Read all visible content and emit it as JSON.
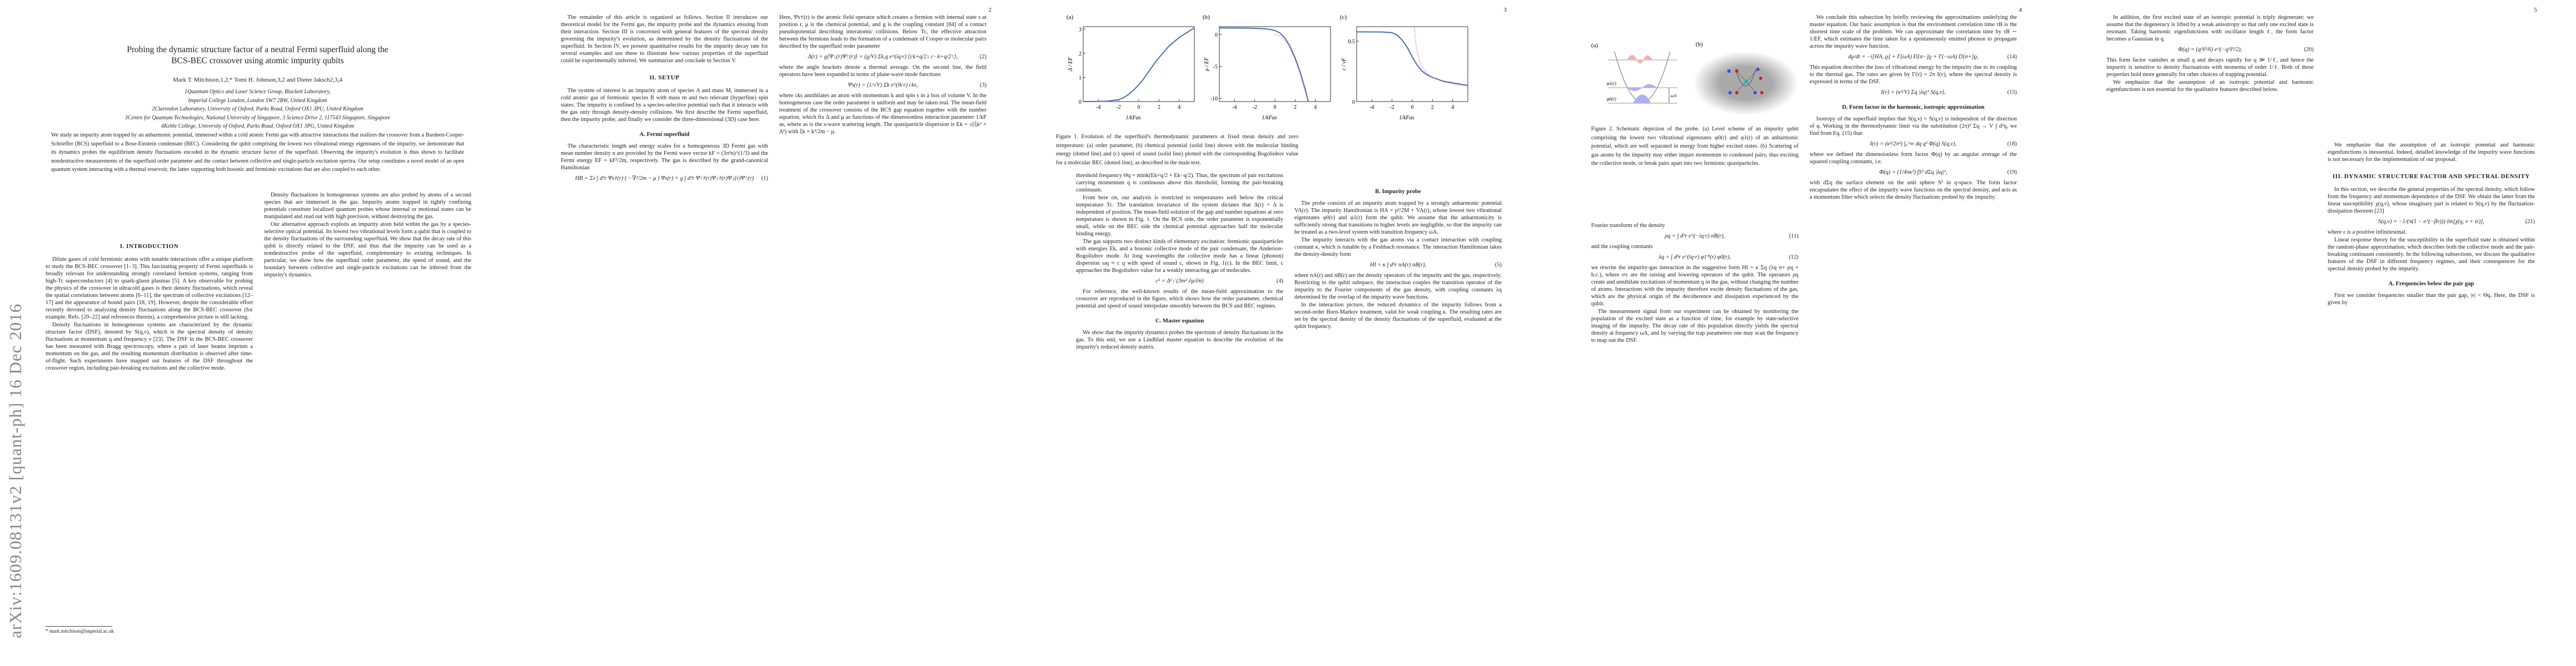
{
  "arxiv_stamp": "arXiv:1609.08131v2  [quant-ph]  16 Dec 2016",
  "page_numbers": [
    "2",
    "3",
    "4",
    "5"
  ],
  "title_line1": "Probing the dynamic structure factor of a neutral Fermi superfluid along the",
  "title_line2": "BCS-BEC crossover using atomic impurity qubits",
  "authors": "Mark T. Mitchison,1,2,* Tomi H. Johnson,3,2 and Dieter Jaksch2,3,4",
  "affiliations": [
    "1Quantum Optics and Laser Science Group, Blackett Laboratory,",
    "Imperial College London, London SW7 2BW, United Kingdom",
    "2Clarendon Laboratory, University of Oxford, Parks Road, Oxford OX1 3PU, United Kingdom",
    "3Centre for Quantum Technologies, National University of Singapore, 3 Science Drive 2, 117543 Singapore, Singapore",
    "4Keble College, University of Oxford, Parks Road, Oxford OX1 3PG, United Kingdom"
  ],
  "abstract": "We study an impurity atom trapped by an anharmonic potential, immersed within a cold atomic Fermi gas with attractive interactions that realizes the crossover from a Bardeen-Cooper-Schrieffer (BCS) superfluid to a Bose-Einstein condensate (BEC). Considering the qubit comprising the lowest two vibrational energy eigenstates of the impurity, we demonstrate that its dynamics probes the equilibrium density fluctuations encoded in the dynamic structure factor of the superfluid. Observing the impurity's evolution is thus shown to facilitate nondestructive measurements of the superfluid order parameter and the contact between collective and single-particle excitation spectra. Our setup constitutes a novel model of an open quantum system interacting with a thermal reservoir, the latter supporting both bosonic and fermionic excitations that are also coupled to each other.",
  "footnote": "* mark.mitchison@imperial.ac.uk",
  "p1": {
    "h_intro": "I.   INTRODUCTION",
    "intro1": "Dilute gases of cold fermionic atoms with tunable interactions offer a unique platform to study the BCS-BEC crossover [1–3]. This fascinating property of Fermi superfluids is broadly relevant for understanding strongly correlated fermion systems, ranging from high-Tc superconductors [4] to quark-gluon plasmas [5]. A key observable for probing the physics of the crossover in ultracold gases is their density fluctuations, which reveal the spatial correlations between atoms [6–11], the spectrum of collective excitations [12–17] and the appearance of bound pairs [18, 19]. However, despite the considerable effort recently devoted to analyzing density fluctuations along the BCS-BEC crossover (for example, Refs. [20–22] and references therein), a comprehensive picture is still lacking.",
    "intro2": "Density fluctuations in homogeneous systems are characterized by the dynamic structure factor (DSF), denoted by S(q,ν), which is the spectral density of density fluctuations at momentum q and frequency ν [23]. The DSF in the BCS-BEC crossover has been measured with Bragg spectroscopy, where a pair of laser beams imprints a momentum on the gas, and the resulting momentum distribution is observed after time-of-flight. Such experiments have mapped out features of the DSF throughout the crossover region, including pair-breaking excitations and the collective mode.",
    "intro3": "Density fluctuations in homogeneous systems are also probed by atoms of a second species that are immersed in the gas. Impurity atoms trapped in tightly confining potentials constitute localized quantum probes whose internal or motional states can be manipulated and read out with high precision, without destroying the gas.",
    "intro4": "Our alternative approach exploits an impurity atom held within the gas by a species-selective optical potential. Its lowest two vibrational levels form a qubit that is coupled to the density fluctuations of the surrounding superfluid. We show that the decay rate of this qubit is directly related to the DSF, and thus that the impurity can be used as a nondestructive probe of the superfluid, complementary to existing techniques. In particular, we show how the superfluid order parameter, the speed of sound, and the boundary between collective and single-particle excitations can be inferred from the impurity's dynamics."
  },
  "p2": {
    "c1a": "The remainder of this article is organized as follows. Section II introduces our theoretical model for the Fermi gas, the impurity probe and the dynamics ensuing from their interaction. Section III is concerned with general features of the spectral density governing the impurity's evolution, as determined by the density fluctuations of the superfluid. In Section IV, we present quantitative results for the impurity decay rate for several examples and use these to illustrate how various properties of the superfluid could be experimentally inferred. We summarize and conclude in Section V.",
    "h_setup": "II.   SETUP",
    "c1b": "The system of interest is an impurity atom of species A and mass M, immersed in a cold atomic gas of fermionic species B with mass m and two relevant (hyperfine) spin states. The impurity is confined by a species-selective potential such that it interacts with the gas only through density-density collisions. We first describe the Fermi superfluid, then the impurity probe, and finally we consider the three-dimensional (3D) case here.",
    "h_fermi": "A.   Fermi superfluid",
    "c1c": "The characteristic length and energy scales for a homogeneous 3D Fermi gas with mean number density n are provided by the Fermi wave vector kF = (3π²n)^(1/3) and the Fermi energy EF = kF²/2m, respectively. The gas is described by the grand-canonical Hamiltonian",
    "eq1": "HB = Σs ∫ d³r Ψs†(r) ( −∇²/2m − μ ) Ψs(r) + g ∫ d³r Ψ↑†(r)Ψ↓†(r)Ψ↓(r)Ψ↑(r)",
    "eq1n": "(1)",
    "c2a": "Here, Ψs†(r) is the atomic field operator which creates a fermion with internal state s at position r, μ is the chemical potential, and g is the coupling constant [84] of a contact pseudopotential describing interatomic collisions. Below Tc, the effective attraction between the fermions leads to the formation of a condensate of Cooper or molecular pairs described by the superfluid order parameter",
    "eq2": "Δ(r) = g⟨Ψ↓(r)Ψ↑(r)⟩ = (g/V) Σk,q e^(iq·r) ⟨ck+q/2↓ c−k+q/2↑⟩,",
    "eq2n": "(2)",
    "c2b": "where the angle brackets denote a thermal average. On the second line, the field operators have been expanded in terms of plane-wave mode functions",
    "eq3": "Ψs(r) = (1/√V) Σk e^(ik·r) cks,",
    "eq3n": "(3)",
    "c2c": "where cks annihilates an atom with momentum k and spin s in a box of volume V. In the homogeneous case the order parameter is uniform and may be taken real. The mean-field treatment of the crossover consists of the BCS gap equation together with the number equation, which fix Δ and μ as functions of the dimensionless interaction parameter 1/kF as, where as is the s-wave scattering length. The quasiparticle dispersion is Ek = √(ξk² + Δ²) with ξk = k²/2m − μ."
  },
  "fig1": {
    "panel_labels": [
      "(a)",
      "(b)",
      "(c)"
    ],
    "caption": "Figure 1. Evolution of the superfluid's thermodynamic parameters at fixed mean density and zero temperature: (a) order parameter, (b) chemical potential (solid line) shown with the molecular binding energy (dotted line) and (c) speed of sound (solid line) plotted with the corresponding Bogoliubov value for a molecular BEC (dotted line), as described in the main text."
  },
  "chart_data": [
    {
      "type": "line",
      "panel": "(a)",
      "xlabel": "1/kFas",
      "ylabel": "Δ / EF",
      "xlim": [
        -5.5,
        5.5
      ],
      "ylim": [
        0,
        3.1
      ],
      "xticks": [
        "-4",
        "-2",
        "0",
        "2",
        "4"
      ],
      "yticks": [
        "0",
        "1",
        "2",
        "3"
      ],
      "series": [
        {
          "style": "solid",
          "color": "#4a6fa5",
          "x": [
            -5.5,
            -4,
            -3,
            -2,
            -1.5,
            -1,
            -0.5,
            0,
            0.5,
            1,
            1.5,
            2,
            3,
            4,
            5,
            5.5
          ],
          "y": [
            0,
            0.005,
            0.02,
            0.08,
            0.16,
            0.3,
            0.48,
            0.69,
            0.95,
            1.25,
            1.55,
            1.82,
            2.3,
            2.65,
            2.92,
            3.05
          ]
        }
      ]
    },
    {
      "type": "line",
      "panel": "(b)",
      "xlabel": "1/kFas",
      "ylabel": "μ / EF",
      "xlim": [
        -5.5,
        5.5
      ],
      "ylim": [
        -10.5,
        1.2
      ],
      "xticks": [
        "-4",
        "-2",
        "0",
        "2",
        "4"
      ],
      "yticks": [
        "0",
        "-5",
        "-10"
      ],
      "series": [
        {
          "style": "solid",
          "color": "#4a6fa5",
          "x": [
            -5.5,
            -3,
            -2,
            -1,
            -0.5,
            0,
            0.5,
            1,
            1.5,
            2,
            2.5,
            3,
            3.3
          ],
          "y": [
            0.99,
            0.97,
            0.94,
            0.86,
            0.77,
            0.59,
            0.2,
            -0.6,
            -1.9,
            -3.7,
            -5.9,
            -8.6,
            -10.5
          ]
        },
        {
          "style": "dotted",
          "color": "#d36fd8",
          "x": [
            0,
            0.5,
            1,
            1.5,
            2,
            2.5,
            3,
            3.25
          ],
          "y": [
            0,
            -0.25,
            -1,
            -2.25,
            -4,
            -6.25,
            -9,
            -10.5
          ]
        }
      ]
    },
    {
      "type": "line",
      "panel": "(c)",
      "xlabel": "1/kFas",
      "ylabel": "c / vF",
      "xlim": [
        -5.5,
        5.5
      ],
      "ylim": [
        0,
        0.62
      ],
      "xticks": [
        "-4",
        "-2",
        "0",
        "2",
        "4"
      ],
      "yticks": [
        "0",
        "0.5"
      ],
      "series": [
        {
          "style": "solid",
          "color": "#4a6fa5",
          "x": [
            -5.5,
            -3,
            -2,
            -1.5,
            -1,
            -0.5,
            0,
            0.5,
            1,
            1.5,
            2,
            3,
            4,
            5,
            5.5
          ],
          "y": [
            0.577,
            0.576,
            0.57,
            0.55,
            0.51,
            0.45,
            0.37,
            0.3,
            0.25,
            0.22,
            0.2,
            0.17,
            0.155,
            0.14,
            0.135
          ]
        },
        {
          "style": "dotted",
          "color": "#d36fd8",
          "x": [
            0.2,
            0.4,
            0.7,
            1,
            1.5,
            2,
            3,
            4,
            5,
            5.5
          ],
          "y": [
            0.62,
            0.45,
            0.34,
            0.28,
            0.23,
            0.2,
            0.165,
            0.145,
            0.135,
            0.13
          ]
        }
      ]
    }
  ],
  "p3": {
    "c1a": "threshold frequency Θq = mink(Ek+q/2 + Ek−q/2). Thus, the spectrum of pair excitations carrying momentum q is continuous above this threshold, forming the pair-breaking continuum.",
    "c1b": "From here on, our analysis is restricted to temperatures well below the critical temperature Tc. The translation invariance of the system dictates that Δ(r) = Δ is independent of position. The mean-field solution of the gap and number equations at zero temperature is shown in Fig. 1. On the BCS side, the order parameter is exponentially small, while on the BEC side the chemical potential approaches half the molecular binding energy.",
    "c1c": "The gas supports two distinct kinds of elementary excitation: fermionic quasiparticles with energies Ek, and a bosonic collective mode of the pair condensate, the Anderson-Bogoliubov mode. At long wavelengths the collective mode has a linear (phonon) dispersion ωq ≈ c q with speed of sound c, shown in Fig. 1(c). In the BEC limit, c approaches the Bogoliubov value for a weakly interacting gas of molecules.",
    "eq4": "c² = Δ² / (3m² ∂μ/∂n)",
    "eq4n": "(4)",
    "c1d": "For reference, the well-known results of the mean-field approximation to the crossover are reproduced in the figure, which shows how the order parameter, chemical potential and speed of sound interpolate smoothly between the BCS and BEC regimes.",
    "h_master": "C.   Master equation",
    "c1e": "We show that the impurity dynamics probes the spectrum of density fluctuations in the gas. To this end, we use a Lindblad master equation to describe the evolution of the impurity's reduced density matrix.",
    "h_probe": "B.   Impurity probe",
    "c2a": "The probe consists of an impurity atom trapped by a strongly anharmonic potential VA(r). The impurity Hamiltonian is HA = p²/2M + VA(r), whose lowest two vibrational eigenstates φ0(r) and φ1(r) form the qubit. We assume that the anharmonicity is sufficiently strong that transitions to higher levels are negligible, so that the impurity can be treated as a two-level system with transition frequency ωA.",
    "c2b": "The impurity interacts with the gas atoms via a contact interaction with coupling constant κ, which is tunable by a Feshbach resonance. The interaction Hamiltonian takes the density-density form",
    "eq5": "HI = κ ∫ d³r nA(r) nB(r),",
    "eq5n": "(5)",
    "c2c": "where nA(r) and nB(r) are the density operators of the impurity and the gas, respectively. Restricting to the qubit subspace, the interaction couples the transition operator of the impurity to the Fourier components of the gas density, with coupling constants λq determined by the overlap of the impurity wave functions.",
    "c2d": "In the interaction picture, the reduced dynamics of the impurity follows from a second-order Born-Markov treatment, valid for weak coupling κ. The resulting rates are set by the spectral density of the density fluctuations of the superfluid, evaluated at the qubit frequency."
  },
  "fig2": {
    "panel_labels": [
      "(a)",
      "(b)"
    ],
    "phi1": "φ1(r)",
    "phi0": "φ0(r)",
    "omega": "ωA",
    "caption": "Figure 2. Schematic depiction of the probe. (a) Level scheme of an impurity qubit comprising the lowest two vibrational eigenstates φ0(r) and φ1(r) of an anharmonic potential, which are well separated in energy from higher excited states. (b) Scattering of gas atoms by the impurity may either impart momentum to condensed pairs, thus exciting the collective mode, or break pairs apart into two fermionic quasiparticles."
  },
  "p4": {
    "c1a": "Fourier transform of the density",
    "eq6": "ρq = ∫ d³r e^(−iq·r) nB(r),",
    "eq6n": "(11)",
    "c1b": "and the coupling constants",
    "eq7": "λq = ∫ d³r e^(iq·r) φ1*(r) φ0(r),",
    "eq7n": "(12)",
    "c1c": "we rewrite the impurity-gas interaction in the suggestive form HI = κ Σq (λq σ+ ρq + h.c.), where σ± are the raising and lowering operators of the qubit. The operators ρq create and annihilate excitations of momentum q in the gas, without changing the number of atoms. Interactions with the impurity therefore excite density fluctuations of the gas, which are the physical origin of the decoherence and dissipation experienced by the qubit.",
    "c1d": "The measurement signal from our experiment can be obtained by monitoring the population of the excited state as a function of time, for example by state-selective imaging of the impurity. The decay rate of this population directly yields the spectral density at frequency ωA, and by varying the trap parameters one may scan the frequency to map out the DSF.",
    "c2a": "We conclude this subsection by briefly reviewing the approximations underlying the master equation. Our basic assumption is that the environment correlation time τB is the shortest time scale of the problem. We can approximate the correlation time by τB ∼ 1/EF, which estimates the time taken for a spontaneously emitted phonon to propagate across the impurity wave function.",
    "eq8": "dϱ/dt = −i[HA, ϱ] + Γ(ωA) D[σ−]ϱ + Γ(−ωA) D[σ+]ϱ,",
    "eq8n": "(14)",
    "c2b": "This equation describes the loss of vibrational energy by the impurity due to its coupling to the thermal gas. The rates are given by Γ(ν) = 2π I(ν), where the spectral density is expressed in terms of the DSF.",
    "eq9": "I(ν) = (κ²/V) Σq |λq|² S(q,ν),",
    "eq9n": "(15)",
    "h_form": "D.   Form factor in the harmonic, isotropic approximation",
    "c2c": "Isotropy of the superfluid implies that S(q,ν) = S(q,ν) is independent of the direction of q. Working in the thermodynamic limit via the substitution (2π)³ Σq → V ∫ d³q, we find from Eq. (15) that",
    "eq10": "I(ν) = (κ²/2π²) ∫₀^∞ dq q² Φ(q) S(q,ν),",
    "eq10n": "(18)",
    "c2d": "where we defined the dimensionless form factor Φ(q) by an angular average of the squared coupling constants, i.e.",
    "eq11": "Φ(q) = (1/4πκ²) ∫S² dΣq |λq|²,",
    "eq11n": "(19)",
    "c2e": "with dΣq the surface element on the unit sphere S² in q-space. The form factor encapsulates the effect of the impurity wave functions on the spectral density, and acts as a momentum filter which selects the density fluctuations probed by the impurity."
  },
  "p5": {
    "c1a": "In addition, the first excited state of an isotropic potential is triply degenerate; we assume that the degeneracy is lifted by a weak anisotropy so that only one excited state is resonant. Taking harmonic eigenfunctions with oscillator length ℓ, the form factor becomes a Gaussian in q.",
    "eq12": "Φ(q) = (q²ℓ²/6) e^(−q²ℓ²/2),",
    "eq12n": "(20)",
    "c1b": "This form factor vanishes at small q and decays rapidly for q ≫ 1/ℓ, and hence the impurity is sensitive to density fluctuations with momenta of order 1/ℓ. Both of these properties hold more generally for other choices of trapping potential.",
    "c1c": "We emphasize that the assumption of an isotropic potential and harmonic eigenfunctions is not essential for the qualitative features described below.",
    "c2a": "We emphasize that the assumption of an isotropic potential and harmonic eigenfunctions is inessential. Indeed, detailed knowledge of the impurity wave functions is not necessary for the implementation of our proposal.",
    "h_dsf": "III.   DYNAMIC STRUCTURE FACTOR AND SPECTRAL DENSITY",
    "c2b": "In this section, we describe the general properties of the spectral density, which follow from the frequency and momentum dependence of the DSF. We obtain the latter from the linear susceptibility χ(q,ν), whose imaginary part is related to S(q,ν) by the fluctuation-dissipation theorem [23]",
    "eq13": "S(q,ν) = −1/(π(1 − e^(−βν))) Im[χ(q, ν + iε)],",
    "eq13n": "(21)",
    "c2c": "where ε is a positive infinitesimal.",
    "c2d": "Linear response theory for the susceptibility in the superfluid state is obtained within the random-phase approximation, which describes both the collective mode and the pair-breaking continuum consistently. In the following subsections, we discuss the qualitative features of the DSF in different frequency regimes, and their consequences for the spectral density probed by the impurity.",
    "h_below": "A.   Frequencies below the pair gap",
    "c2e": "First we consider frequencies smaller than the pair gap, |ν| < Θq. Here, the DSF is given by"
  }
}
